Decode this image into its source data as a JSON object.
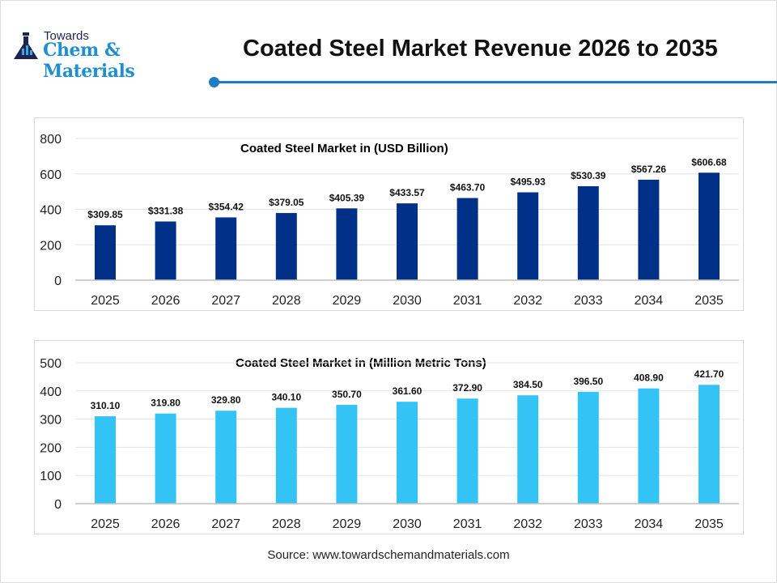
{
  "logo": {
    "line1": "Towards",
    "line2": "Chem & Materials"
  },
  "header": {
    "title": "Coated Steel Market Revenue 2026 to 2035"
  },
  "source": "Source: www.towardschemandmaterials.com",
  "chart_data": [
    {
      "type": "bar",
      "title": "Coated Steel Market in (USD Billion)",
      "categories": [
        "2025",
        "2026",
        "2027",
        "2028",
        "2029",
        "2030",
        "2031",
        "2032",
        "2033",
        "2034",
        "2035"
      ],
      "values": [
        309.85,
        331.38,
        354.42,
        379.05,
        405.39,
        433.57,
        463.7,
        495.93,
        530.39,
        567.26,
        606.68
      ],
      "labels": [
        "$309.85",
        "$331.38",
        "$354.42",
        "$379.05",
        "$405.39",
        "$433.57",
        "$463.70",
        "$495.93",
        "$530.39",
        "$567.26",
        "$606.68"
      ],
      "ylim": [
        0,
        800
      ],
      "yticks": [
        0,
        200,
        400,
        600,
        800
      ],
      "color": "#003087",
      "grid": true
    },
    {
      "type": "bar",
      "title": "Coated Steel Market in (Million Metric Tons)",
      "categories": [
        "2025",
        "2026",
        "2027",
        "2028",
        "2029",
        "2030",
        "2031",
        "2032",
        "2033",
        "2034",
        "2035"
      ],
      "values": [
        310.1,
        319.8,
        329.8,
        340.1,
        350.7,
        361.6,
        372.9,
        384.5,
        396.5,
        408.9,
        421.7
      ],
      "labels": [
        "310.10",
        "319.80",
        "329.80",
        "340.10",
        "350.70",
        "361.60",
        "372.90",
        "384.50",
        "396.50",
        "408.90",
        "421.70"
      ],
      "ylim": [
        0,
        500
      ],
      "yticks": [
        0,
        100,
        200,
        300,
        400,
        500
      ],
      "color": "#33c3f5",
      "grid": true
    }
  ]
}
